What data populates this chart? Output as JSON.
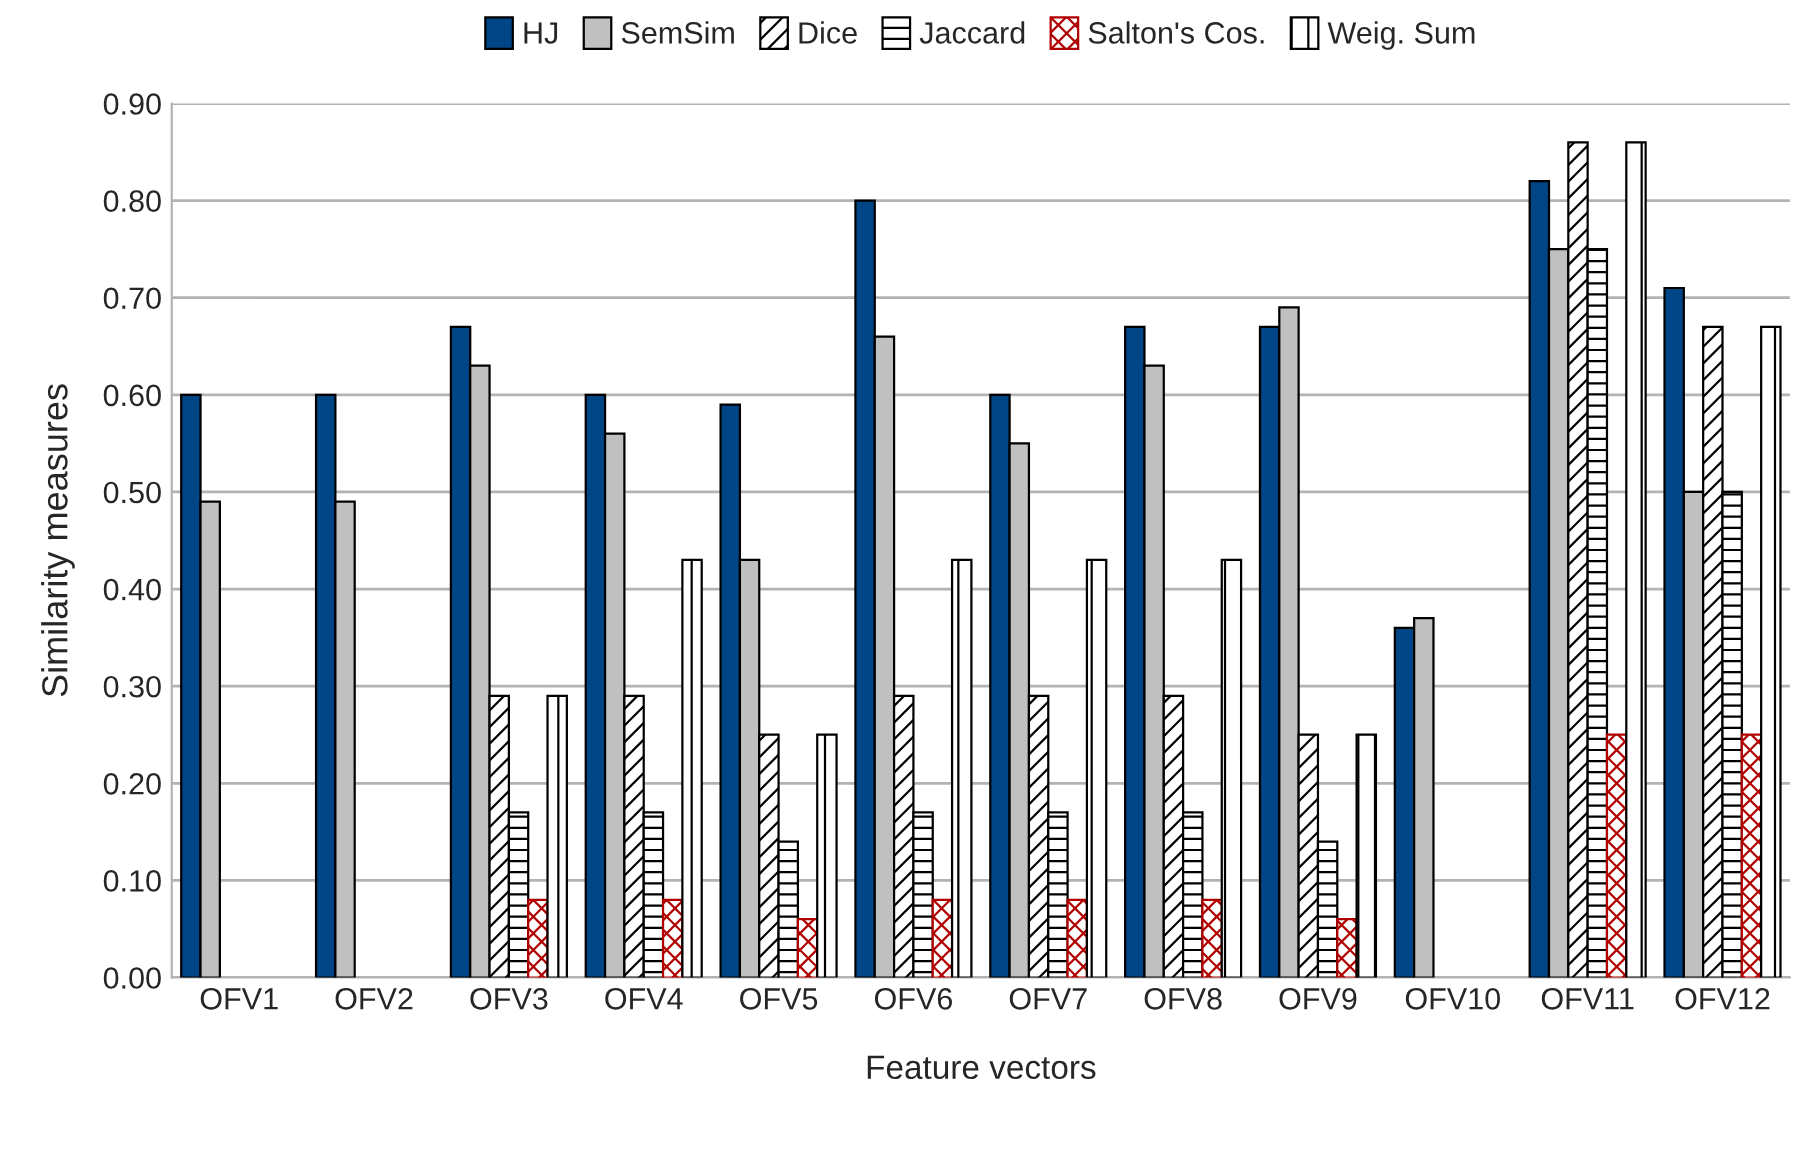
{
  "chart_data": {
    "type": "bar",
    "xlabel": "Feature vectors",
    "ylabel": "Similarity measures",
    "categories": [
      "OFV1",
      "OFV2",
      "OFV3",
      "OFV4",
      "OFV5",
      "OFV6",
      "OFV7",
      "OFV8",
      "OFV9",
      "OFV10",
      "OFV11",
      "OFV12"
    ],
    "series": [
      {
        "name": "HJ",
        "color": "#004586",
        "values": [
          0.6,
          0.6,
          0.67,
          0.6,
          0.59,
          0.8,
          0.6,
          0.67,
          0.67,
          0.36,
          0.82,
          0.71
        ]
      },
      {
        "name": "SemSim",
        "color": "#c0c0c0",
        "values": [
          0.49,
          0.49,
          0.63,
          0.56,
          0.43,
          0.66,
          0.55,
          0.63,
          0.69,
          0.37,
          0.75,
          0.5
        ]
      },
      {
        "name": "Dice",
        "color": "#000000",
        "values": [
          null,
          null,
          0.29,
          0.29,
          0.25,
          0.29,
          0.29,
          0.29,
          0.25,
          null,
          0.86,
          0.67
        ]
      },
      {
        "name": "Jaccard",
        "color": "#000000",
        "values": [
          null,
          null,
          0.17,
          0.17,
          0.14,
          0.17,
          0.17,
          0.17,
          0.14,
          null,
          0.75,
          0.5
        ]
      },
      {
        "name": "Salton's Cos.",
        "color": "#b00000",
        "values": [
          null,
          null,
          0.08,
          0.08,
          0.06,
          0.08,
          0.08,
          0.08,
          0.06,
          null,
          0.25,
          0.25
        ]
      },
      {
        "name": "Weig. Sum",
        "color": "#000000",
        "values": [
          null,
          null,
          0.29,
          0.43,
          0.25,
          0.43,
          0.43,
          0.43,
          0.25,
          null,
          0.86,
          0.67
        ]
      }
    ],
    "ylim": [
      0,
      0.9
    ],
    "yticks": [
      {
        "value": 0,
        "label": "0.00"
      },
      {
        "value": 0.1,
        "label": "0.10"
      },
      {
        "value": 0.2,
        "label": "0.20"
      },
      {
        "value": 0.3,
        "label": "0.30"
      },
      {
        "value": 0.4,
        "label": "0.40"
      },
      {
        "value": 0.5,
        "label": "0.50"
      },
      {
        "value": 0.6,
        "label": "0.60"
      },
      {
        "value": 0.7,
        "label": "0.70"
      },
      {
        "value": 0.8,
        "label": "0.80"
      },
      {
        "value": 0.9,
        "label": "0.90"
      }
    ],
    "grid": "y",
    "legend": "top"
  }
}
